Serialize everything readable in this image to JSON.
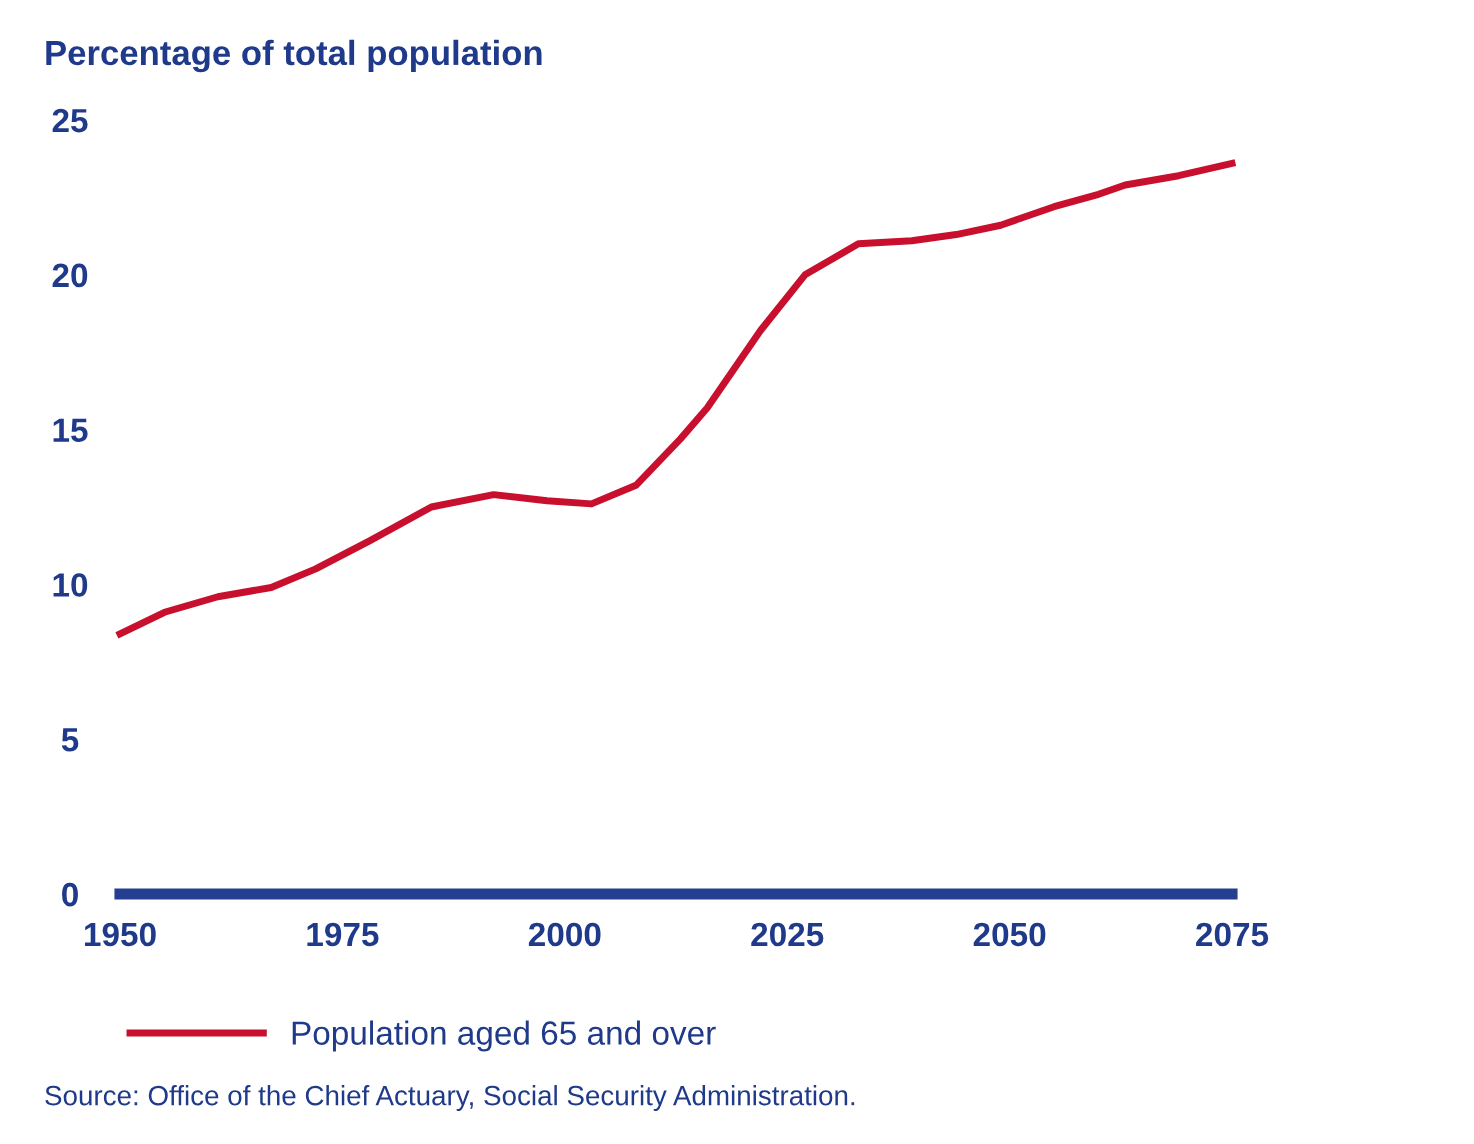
{
  "chart_data": {
    "type": "line",
    "ylabel": "Percentage of total population",
    "x": [
      1950,
      1955,
      1961,
      1967,
      1972,
      1978,
      1985,
      1992,
      1998,
      2003,
      2008,
      2013,
      2016,
      2022,
      2027,
      2033,
      2039,
      2044,
      2049,
      2055,
      2060,
      2063,
      2069,
      2075
    ],
    "series": [
      {
        "name": "Population aged 65 and over",
        "color": "#c8102e",
        "values": [
          8.4,
          9.1,
          9.6,
          9.9,
          10.5,
          11.4,
          12.5,
          12.9,
          12.7,
          12.6,
          13.2,
          14.7,
          15.7,
          18.2,
          20.0,
          21.0,
          21.1,
          21.3,
          21.6,
          22.2,
          22.6,
          22.9,
          23.2,
          23.6
        ]
      }
    ],
    "xlim": [
      1950,
      2075
    ],
    "xticks": [
      1950,
      1975,
      2000,
      2025,
      2050,
      2075
    ],
    "ylim": [
      0,
      25
    ],
    "yticks": [
      0,
      5,
      10,
      15,
      20,
      25
    ],
    "grid": false,
    "legend": "bottom",
    "marker": "none",
    "line_style": "solid",
    "annotations": [
      "Source: Office of the Chief Actuary, Social Security Administration."
    ]
  }
}
